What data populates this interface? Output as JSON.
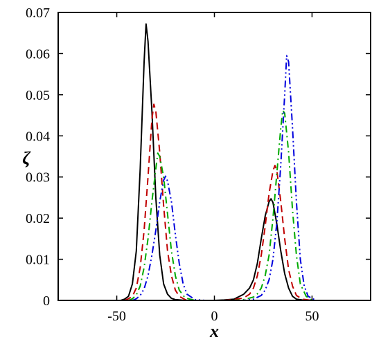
{
  "chart_data": {
    "type": "line",
    "xlabel": "x",
    "ylabel": "ζ",
    "xlim": [
      -80,
      80
    ],
    "ylim": [
      0,
      0.07
    ],
    "x_ticks": [
      -50,
      0,
      50
    ],
    "x_tick_labels": [
      "-50",
      "0",
      "50"
    ],
    "y_ticks": [
      0,
      0.01,
      0.02,
      0.03,
      0.04,
      0.05,
      0.06,
      0.07
    ],
    "y_tick_labels": [
      "0",
      "0.01",
      "0.02",
      "0.03",
      "0.04",
      "0.05",
      "0.06",
      "0.07"
    ],
    "grid": false,
    "legend": "none",
    "series": [
      {
        "color": "#000000",
        "dash": "solid",
        "x": [
          -48,
          -46,
          -44,
          -42,
          -40,
          -38,
          -36,
          -35,
          -34,
          -32,
          -30,
          -28,
          -26,
          -24,
          -22,
          -20,
          -15,
          -10,
          -5,
          0,
          5,
          10,
          15,
          18,
          20,
          22,
          24,
          26,
          28,
          29,
          30,
          32,
          34,
          36,
          38,
          40,
          42,
          45,
          50
        ],
        "y": [
          0,
          0.0003,
          0.001,
          0.004,
          0.012,
          0.032,
          0.058,
          0.0672,
          0.063,
          0.046,
          0.025,
          0.011,
          0.004,
          0.0015,
          0.0005,
          0.0002,
          0,
          0,
          0,
          0,
          0.0001,
          0.0003,
          0.0015,
          0.003,
          0.005,
          0.009,
          0.015,
          0.0205,
          0.024,
          0.0247,
          0.0238,
          0.0185,
          0.012,
          0.0065,
          0.003,
          0.001,
          0.0003,
          0.0001,
          0
        ]
      },
      {
        "color": "#c00000",
        "dash": "dashed",
        "x": [
          -46,
          -44,
          -42,
          -40,
          -38,
          -36,
          -34,
          -32,
          -31,
          -30,
          -28,
          -26,
          -24,
          -22,
          -20,
          -18,
          -15,
          -10,
          -5,
          0,
          5,
          10,
          15,
          18,
          20,
          22,
          24,
          26,
          28,
          30,
          31,
          32,
          34,
          36,
          38,
          40,
          42,
          45,
          50
        ],
        "y": [
          0,
          0.0004,
          0.001,
          0.003,
          0.008,
          0.017,
          0.03,
          0.044,
          0.0477,
          0.046,
          0.036,
          0.023,
          0.012,
          0.006,
          0.0025,
          0.001,
          0.0002,
          0,
          0,
          0,
          0,
          0.0002,
          0.0006,
          0.0015,
          0.003,
          0.006,
          0.011,
          0.018,
          0.026,
          0.0315,
          0.0328,
          0.0315,
          0.024,
          0.015,
          0.0075,
          0.0035,
          0.0012,
          0.0003,
          0
        ]
      },
      {
        "color": "#00aa00",
        "dash": "dashdot",
        "x": [
          -44,
          -42,
          -40,
          -38,
          -36,
          -34,
          -32,
          -30,
          -29,
          -28,
          -26,
          -24,
          -22,
          -20,
          -18,
          -15,
          -10,
          -5,
          0,
          5,
          10,
          15,
          20,
          22,
          24,
          26,
          28,
          30,
          32,
          34,
          35,
          36,
          38,
          40,
          42,
          44,
          47,
          50
        ],
        "y": [
          0,
          0.0004,
          0.0013,
          0.0035,
          0.008,
          0.015,
          0.024,
          0.032,
          0.0358,
          0.035,
          0.03,
          0.021,
          0.012,
          0.006,
          0.0025,
          0.0006,
          0,
          0,
          0,
          0,
          0,
          0.0002,
          0.0008,
          0.0016,
          0.003,
          0.006,
          0.011,
          0.02,
          0.031,
          0.042,
          0.0462,
          0.0455,
          0.036,
          0.022,
          0.011,
          0.004,
          0.001,
          0
        ]
      },
      {
        "color": "#0000dd",
        "dash": "dashdotdot",
        "x": [
          -42,
          -40,
          -38,
          -36,
          -34,
          -32,
          -30,
          -28,
          -26,
          -25,
          -24,
          -22,
          -20,
          -18,
          -16,
          -14,
          -10,
          -5,
          0,
          5,
          10,
          15,
          20,
          24,
          26,
          28,
          30,
          32,
          34,
          36,
          37,
          38,
          40,
          42,
          44,
          46,
          48,
          52
        ],
        "y": [
          0,
          0.0004,
          0.0012,
          0.0028,
          0.006,
          0.011,
          0.017,
          0.024,
          0.0292,
          0.0302,
          0.029,
          0.024,
          0.016,
          0.009,
          0.004,
          0.0015,
          0.0002,
          0,
          0,
          0,
          0,
          0,
          0.0003,
          0.0012,
          0.0025,
          0.005,
          0.01,
          0.019,
          0.033,
          0.05,
          0.0595,
          0.058,
          0.042,
          0.024,
          0.01,
          0.0035,
          0.001,
          0
        ]
      }
    ]
  }
}
